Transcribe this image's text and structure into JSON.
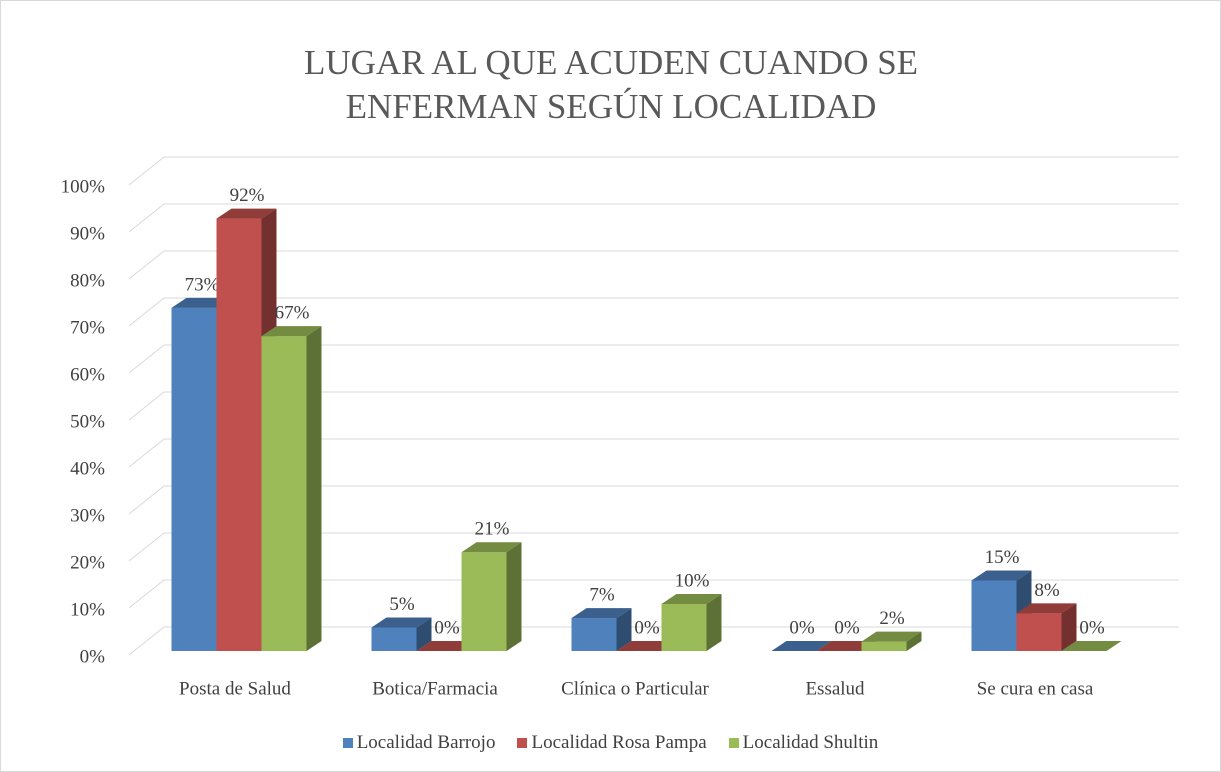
{
  "chart_data": {
    "type": "bar3d",
    "title": "LUGAR AL QUE ACUDEN CUANDO SE ENFERMAN SEGÚN LOCALIDAD",
    "categories": [
      "Posta de Salud",
      "Botica/Farmacia",
      "Clínica o Particular",
      "Essalud",
      "Se cura en casa"
    ],
    "series": [
      {
        "name": "Localidad Barrojo",
        "color": "#4f81bd",
        "values": [
          73,
          5,
          7,
          0,
          15
        ],
        "value_labels": [
          "73%",
          "5%",
          "7%",
          "0%",
          "15%"
        ]
      },
      {
        "name": "Localidad Rosa Pampa",
        "color": "#c0504d",
        "values": [
          92,
          0,
          0,
          0,
          8
        ],
        "value_labels": [
          "92%",
          "0%",
          "0%",
          "0%",
          "8%"
        ]
      },
      {
        "name": "Localidad Shultin",
        "color": "#9bbb59",
        "values": [
          67,
          21,
          10,
          2,
          0
        ],
        "value_labels": [
          "67%",
          "21%",
          "10%",
          "2%",
          "0%"
        ]
      }
    ],
    "ylim": [
      0,
      100
    ],
    "yticks": [
      {
        "value": 0,
        "label": "0%"
      },
      {
        "value": 10,
        "label": "10%"
      },
      {
        "value": 20,
        "label": "20%"
      },
      {
        "value": 30,
        "label": "30%"
      },
      {
        "value": 40,
        "label": "40%"
      },
      {
        "value": 50,
        "label": "50%"
      },
      {
        "value": 60,
        "label": "60%"
      },
      {
        "value": 70,
        "label": "70%"
      },
      {
        "value": 80,
        "label": "80%"
      },
      {
        "value": 90,
        "label": "90%"
      },
      {
        "value": 100,
        "label": "100%"
      }
    ],
    "grid": true,
    "legend": "bottom"
  }
}
